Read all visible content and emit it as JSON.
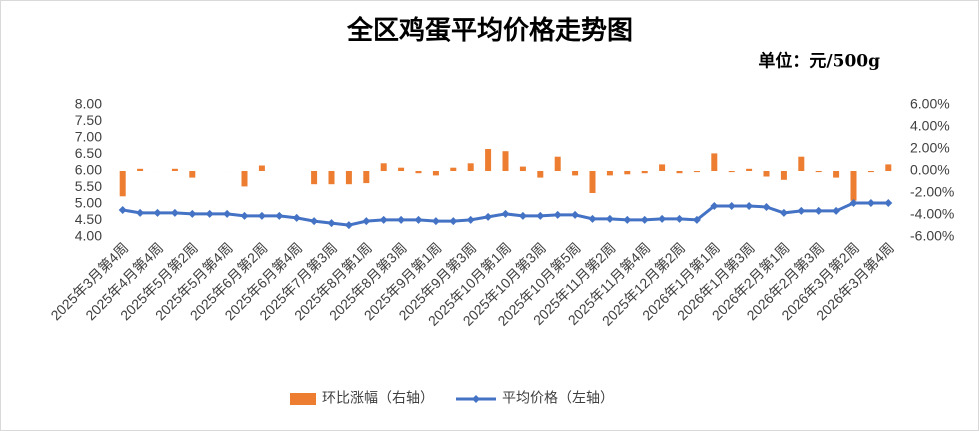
{
  "chart_data": {
    "type": "combo",
    "title": "全区鸡蛋平均价格走势图",
    "unit_label": "单位：元/500g",
    "categories": [
      "2025年3月第4周",
      null,
      "2025年4月第4周",
      null,
      "2025年5月第2周",
      null,
      "2025年5月第4周",
      null,
      "2025年6月第2周",
      null,
      "2025年6月第4周",
      null,
      "2025年7月第3周",
      null,
      "2025年8月第1周",
      null,
      "2025年8月第3周",
      null,
      "2025年9月第1周",
      null,
      "2025年9月第3周",
      null,
      "2025年10月第1周",
      null,
      "2025年10月第3周",
      null,
      "2025年10月第5周",
      null,
      "2025年11月第2周",
      null,
      "2025年11月第4周",
      null,
      "2025年12月第2周",
      null,
      "2026年1月第1周",
      null,
      "2026年1月第3周",
      null,
      "2026年2月第1周",
      null,
      "2026年2月第3周",
      null,
      "2026年3月第2周",
      null,
      "2026年3月第4周"
    ],
    "series": [
      {
        "name": "环比涨幅（右轴）",
        "type": "bar",
        "axis": "y2",
        "color": "#ed7d31",
        "values": [
          -2.3,
          0.2,
          0,
          0.2,
          -0.6,
          0,
          0,
          -1.4,
          0.5,
          0,
          0,
          -1.2,
          -1.2,
          -1.2,
          -1.1,
          0.7,
          0.3,
          -0.2,
          -0.4,
          0.3,
          0.7,
          2.0,
          1.8,
          0.4,
          -0.6,
          1.3,
          -0.4,
          -2.0,
          -0.4,
          -0.3,
          -0.2,
          0.6,
          -0.2,
          -0.1,
          1.6,
          -0.1,
          0.2,
          -0.5,
          -0.8,
          1.3,
          -0.1,
          -0.6,
          -2.7,
          -0.1,
          0.6
        ]
      },
      {
        "name": "平均价格（左轴）",
        "type": "line",
        "color": "#4472c4",
        "values": [
          4.82,
          4.73,
          4.73,
          4.73,
          4.7,
          4.7,
          4.7,
          4.64,
          4.64,
          4.64,
          4.58,
          4.48,
          4.42,
          4.36,
          4.48,
          4.52,
          4.52,
          4.52,
          4.48,
          4.48,
          4.52,
          4.61,
          4.7,
          4.64,
          4.64,
          4.67,
          4.67,
          4.55,
          4.55,
          4.52,
          4.52,
          4.55,
          4.55,
          4.52,
          4.94,
          4.94,
          4.94,
          4.91,
          4.73,
          4.79,
          4.79,
          4.79,
          5.03,
          5.03,
          5.03
        ]
      }
    ],
    "ylim": [
      4,
      8
    ],
    "yticks": [
      {
        "value": 4,
        "label": "4.00"
      },
      {
        "value": 4.5,
        "label": "4.50"
      },
      {
        "value": 5,
        "label": "5.00"
      },
      {
        "value": 5.5,
        "label": "5.50"
      },
      {
        "value": 6,
        "label": "6.00"
      },
      {
        "value": 6.5,
        "label": "6.50"
      },
      {
        "value": 7,
        "label": "7.00"
      },
      {
        "value": 7.5,
        "label": "7.50"
      },
      {
        "value": 8,
        "label": "8.00"
      }
    ],
    "y2lim": [
      -6,
      6
    ],
    "y2ticks": [
      {
        "value": -6,
        "label": "-6.00%"
      },
      {
        "value": -4,
        "label": "-4.00%"
      },
      {
        "value": -2,
        "label": "-2.00%"
      },
      {
        "value": 0,
        "label": "0.00%"
      },
      {
        "value": 2,
        "label": "2.00%"
      },
      {
        "value": 4,
        "label": "4.00%"
      },
      {
        "value": 6,
        "label": "6.00%"
      }
    ],
    "legend": "bottom"
  }
}
